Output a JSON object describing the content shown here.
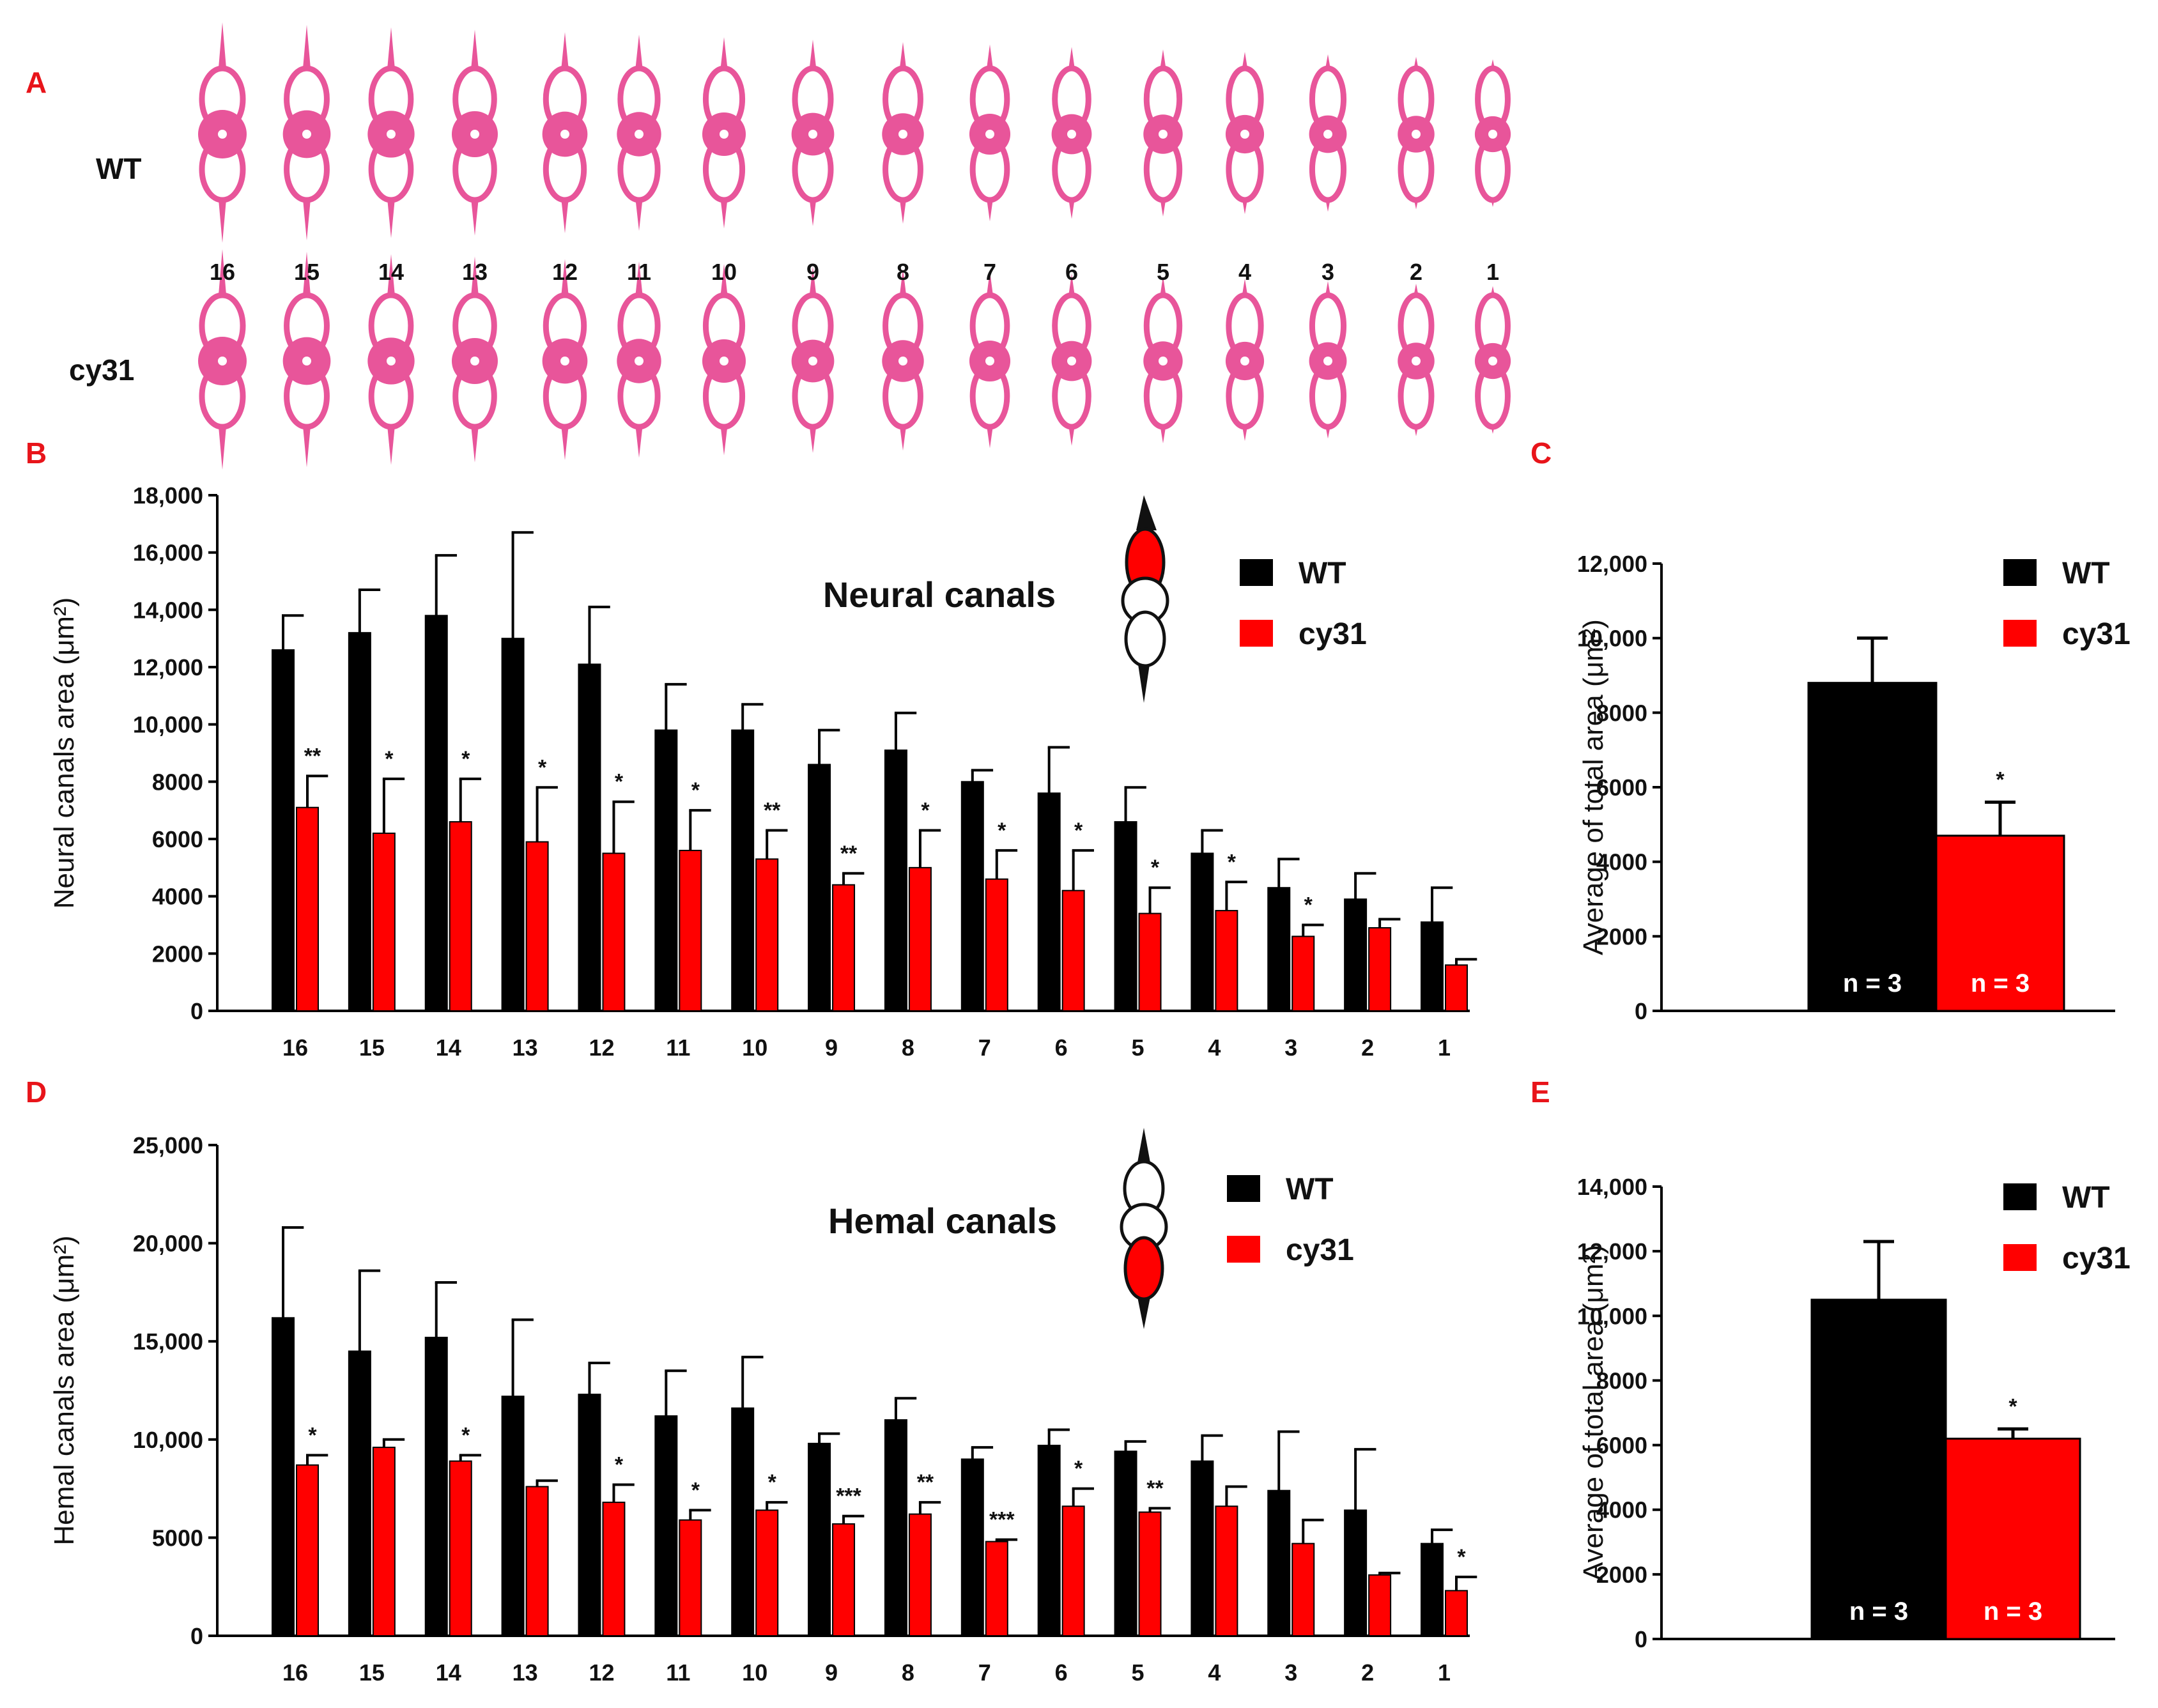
{
  "colors": {
    "wt": "#000000",
    "cy31": "#ff0000",
    "accent": "#e8141a",
    "stain": "#e8559a"
  },
  "panel_a": {
    "letter": "A",
    "rows": [
      "WT",
      "cy31"
    ],
    "vertebra_numbers": [
      "16",
      "15",
      "14",
      "13",
      "12",
      "11",
      "10",
      "9",
      "8",
      "7",
      "6",
      "5",
      "4",
      "3",
      "2",
      "1"
    ]
  },
  "chart_data": [
    {
      "id": "B",
      "letter": "B",
      "type": "bar",
      "title": "Neural canals",
      "xlabel": "",
      "ylabel": "Neural canals area (μm²)",
      "ylim": [
        0,
        18000
      ],
      "yticks": [
        0,
        2000,
        4000,
        6000,
        8000,
        10000,
        12000,
        14000,
        16000,
        18000
      ],
      "ytick_labels": [
        "0",
        "2000",
        "4000",
        "6000",
        "8000",
        "10,000",
        "12,000",
        "14,000",
        "16,000",
        "18,000"
      ],
      "categories": [
        "16",
        "15",
        "14",
        "13",
        "12",
        "11",
        "10",
        "9",
        "8",
        "7",
        "6",
        "5",
        "4",
        "3",
        "2",
        "1"
      ],
      "series": [
        {
          "name": "WT",
          "values": [
            12600,
            13200,
            13800,
            13000,
            12100,
            9800,
            9800,
            8600,
            9100,
            8000,
            7600,
            6600,
            5500,
            4300,
            3900,
            3100
          ],
          "errors": [
            1200,
            1500,
            2100,
            3700,
            2000,
            1600,
            900,
            1200,
            1300,
            400,
            1600,
            1200,
            800,
            1000,
            900,
            1200
          ]
        },
        {
          "name": "cy31",
          "values": [
            7100,
            6200,
            6600,
            5900,
            5500,
            5600,
            5300,
            4400,
            5000,
            4600,
            4200,
            3400,
            3500,
            2600,
            2900,
            1600
          ],
          "errors": [
            1100,
            1900,
            1500,
            1900,
            1800,
            1400,
            1000,
            400,
            1300,
            1000,
            1400,
            900,
            1000,
            400,
            300,
            200
          ]
        }
      ],
      "significance": [
        "**",
        "*",
        "*",
        "*",
        "*",
        "*",
        "**",
        "**",
        "*",
        "*",
        "*",
        "*",
        "*",
        "*",
        "",
        ""
      ],
      "legend": [
        "WT",
        "cy31"
      ]
    },
    {
      "id": "C",
      "letter": "C",
      "type": "bar",
      "title": "",
      "xlabel": "",
      "ylabel": "Average of total area (μm²)",
      "ylim": [
        0,
        12000
      ],
      "yticks": [
        0,
        2000,
        4000,
        6000,
        8000,
        10000,
        12000
      ],
      "ytick_labels": [
        "0",
        "2000",
        "4000",
        "6000",
        "8000",
        "10,000",
        "12,000"
      ],
      "categories": [
        "WT",
        "cy31"
      ],
      "values": [
        8800,
        4700
      ],
      "errors": [
        1200,
        900
      ],
      "bar_labels": [
        "n = 3",
        "n = 3"
      ],
      "significance": [
        "",
        "*"
      ],
      "legend": [
        "WT",
        "cy31"
      ]
    },
    {
      "id": "D",
      "letter": "D",
      "type": "bar",
      "title": "Hemal canals",
      "xlabel": "",
      "ylabel": "Hemal canals area (μm²)",
      "ylim": [
        0,
        25000
      ],
      "yticks": [
        0,
        5000,
        10000,
        15000,
        20000,
        25000
      ],
      "ytick_labels": [
        "0",
        "5000",
        "10,000",
        "15,000",
        "20,000",
        "25,000"
      ],
      "categories": [
        "16",
        "15",
        "14",
        "13",
        "12",
        "11",
        "10",
        "9",
        "8",
        "7",
        "6",
        "5",
        "4",
        "3",
        "2",
        "1"
      ],
      "series": [
        {
          "name": "WT",
          "values": [
            16200,
            14500,
            15200,
            12200,
            12300,
            11200,
            11600,
            9800,
            11000,
            9000,
            9700,
            9400,
            8900,
            7400,
            6400,
            4700
          ],
          "errors": [
            4600,
            4100,
            2800,
            3900,
            1600,
            2300,
            2600,
            500,
            1100,
            600,
            800,
            500,
            1300,
            3000,
            3100,
            700
          ]
        },
        {
          "name": "cy31",
          "values": [
            8700,
            9600,
            8900,
            7600,
            6800,
            5900,
            6400,
            5700,
            6200,
            4800,
            6600,
            6300,
            6600,
            4700,
            3100,
            2300
          ],
          "errors": [
            500,
            400,
            300,
            300,
            900,
            500,
            400,
            400,
            600,
            100,
            900,
            200,
            1000,
            1200,
            100,
            700
          ]
        }
      ],
      "significance": [
        "*",
        "",
        "*",
        "",
        "*",
        "*",
        "*",
        "***",
        "**",
        "***",
        "*",
        "**",
        "",
        "",
        "",
        "*"
      ],
      "legend": [
        "WT",
        "cy31"
      ]
    },
    {
      "id": "E",
      "letter": "E",
      "type": "bar",
      "title": "",
      "xlabel": "",
      "ylabel": "Average of total area (μm²)",
      "ylim": [
        0,
        14000
      ],
      "yticks": [
        0,
        2000,
        4000,
        6000,
        8000,
        10000,
        12000,
        14000
      ],
      "ytick_labels": [
        "0",
        "2000",
        "4000",
        "6000",
        "8000",
        "10,000",
        "12,000",
        "14,000"
      ],
      "categories": [
        "WT",
        "cy31"
      ],
      "values": [
        10500,
        6200
      ],
      "errors": [
        1800,
        300
      ],
      "bar_labels": [
        "n = 3",
        "n = 3"
      ],
      "significance": [
        "",
        "*"
      ],
      "legend": [
        "WT",
        "cy31"
      ]
    }
  ]
}
